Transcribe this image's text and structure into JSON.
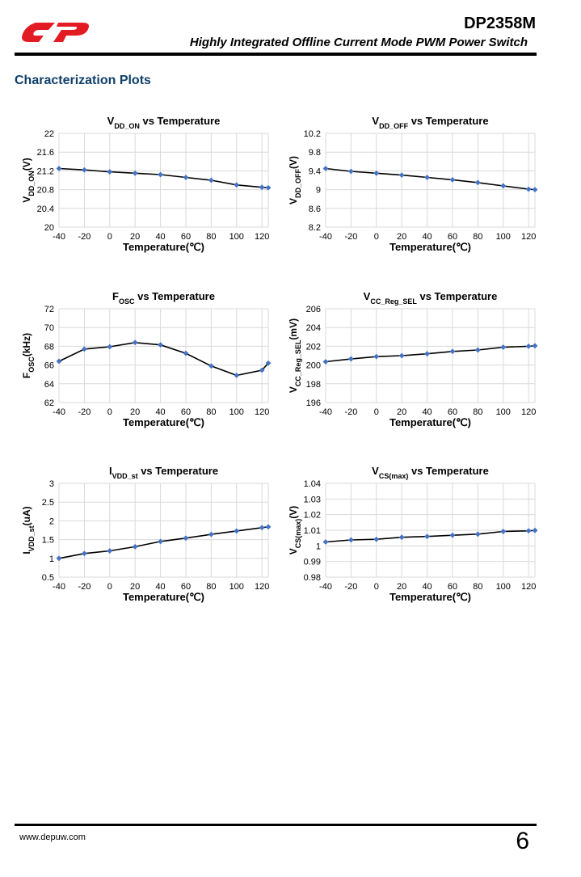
{
  "header": {
    "product": "DP2358M",
    "subtitle": "Highly Integrated Offline Current Mode PWM Power Switch",
    "logo_color": "#e31b23"
  },
  "section": {
    "title": "Characterization Plots"
  },
  "footer": {
    "url": "www.depuw.com",
    "page_number": "6"
  },
  "colors": {
    "line": "#000000",
    "marker": "#4472c4",
    "grid": "#d9d9d9",
    "title_accent": "#0f3f6a"
  },
  "chart_data": [
    {
      "type": "line",
      "title": [
        {
          "t": "V"
        },
        {
          "t": "DD_ON",
          "sub": true
        },
        {
          "t": " vs Temperature"
        }
      ],
      "ylabel": [
        {
          "t": "V"
        },
        {
          "t": "DD_ON",
          "sub": true
        },
        {
          "t": "(V)"
        }
      ],
      "xlabel": "Temperature(℃)",
      "x": [
        -40,
        -20,
        0,
        20,
        40,
        60,
        80,
        100,
        120,
        125
      ],
      "y": [
        21.25,
        21.22,
        21.18,
        21.15,
        21.12,
        21.06,
        21.0,
        20.9,
        20.85,
        20.84
      ],
      "xlim": [
        -40,
        125
      ],
      "xticks": [
        -40,
        -20,
        0,
        20,
        40,
        60,
        80,
        100,
        120
      ],
      "ylim": [
        20,
        22
      ],
      "yticks": [
        "20",
        "20.4",
        "20.8",
        "21.2",
        "21.6",
        "22"
      ]
    },
    {
      "type": "line",
      "title": [
        {
          "t": "V"
        },
        {
          "t": "DD_OFF",
          "sub": true
        },
        {
          "t": " vs Temperature"
        }
      ],
      "ylabel": [
        {
          "t": "V"
        },
        {
          "t": "DD_OFF",
          "sub": true
        },
        {
          "t": "(V)"
        }
      ],
      "xlabel": "Temperature(℃)",
      "x": [
        -40,
        -20,
        0,
        20,
        40,
        60,
        80,
        100,
        120,
        125
      ],
      "y": [
        9.45,
        9.39,
        9.35,
        9.31,
        9.26,
        9.21,
        9.15,
        9.08,
        9.01,
        9.0
      ],
      "xlim": [
        -40,
        125
      ],
      "xticks": [
        -40,
        -20,
        0,
        20,
        40,
        60,
        80,
        100,
        120
      ],
      "ylim": [
        8.2,
        10.2
      ],
      "yticks": [
        "8.2",
        "8.6",
        "9",
        "9.4",
        "9.8",
        "10.2"
      ]
    },
    {
      "type": "line",
      "title": [
        {
          "t": "F"
        },
        {
          "t": "OSC",
          "sub": true
        },
        {
          "t": " vs Temperature"
        }
      ],
      "ylabel": [
        {
          "t": "F"
        },
        {
          "t": "OSC",
          "sub": true
        },
        {
          "t": "(kHz)"
        }
      ],
      "xlabel": "Temperature(℃)",
      "x": [
        -40,
        -20,
        0,
        20,
        40,
        60,
        80,
        100,
        120,
        125
      ],
      "y": [
        66.4,
        67.7,
        67.95,
        68.4,
        68.15,
        67.25,
        65.9,
        64.9,
        65.45,
        66.2
      ],
      "xlim": [
        -40,
        125
      ],
      "xticks": [
        -40,
        -20,
        0,
        20,
        40,
        60,
        80,
        100,
        120
      ],
      "ylim": [
        62,
        72
      ],
      "yticks": [
        "62",
        "64",
        "66",
        "68",
        "70",
        "72"
      ]
    },
    {
      "type": "line",
      "title": [
        {
          "t": "V"
        },
        {
          "t": "CC_Reg_SEL",
          "sub": true
        },
        {
          "t": " vs Temperature"
        }
      ],
      "ylabel": [
        {
          "t": "V"
        },
        {
          "t": "CC_Reg_SEL",
          "sub": true
        },
        {
          "t": "(mV)"
        }
      ],
      "xlabel": "Temperature(℃)",
      "x": [
        -40,
        -20,
        0,
        20,
        40,
        60,
        80,
        100,
        120,
        125
      ],
      "y": [
        200.35,
        200.65,
        200.9,
        201.0,
        201.2,
        201.45,
        201.6,
        201.9,
        202.0,
        202.05
      ],
      "xlim": [
        -40,
        125
      ],
      "xticks": [
        -40,
        -20,
        0,
        20,
        40,
        60,
        80,
        100,
        120
      ],
      "ylim": [
        196,
        206
      ],
      "yticks": [
        "196",
        "198",
        "200",
        "202",
        "204",
        "206"
      ]
    },
    {
      "type": "line",
      "title": [
        {
          "t": "I"
        },
        {
          "t": "VDD_st",
          "sub": true
        },
        {
          "t": " vs Temperature"
        }
      ],
      "ylabel": [
        {
          "t": "I"
        },
        {
          "t": "VDD_st",
          "sub": true
        },
        {
          "t": "(uA)"
        }
      ],
      "xlabel": "Temperature(℃)",
      "x": [
        -40,
        -20,
        0,
        20,
        40,
        60,
        80,
        100,
        120,
        125
      ],
      "y": [
        1.0,
        1.13,
        1.2,
        1.31,
        1.45,
        1.54,
        1.64,
        1.73,
        1.82,
        1.84
      ],
      "xlim": [
        -40,
        125
      ],
      "xticks": [
        -40,
        -20,
        0,
        20,
        40,
        60,
        80,
        100,
        120
      ],
      "ylim": [
        0.5,
        3
      ],
      "yticks": [
        "0.5",
        "1",
        "1.5",
        "2",
        "2.5",
        "3"
      ]
    },
    {
      "type": "line",
      "title": [
        {
          "t": "V"
        },
        {
          "t": "CS(max)",
          "sub": true
        },
        {
          "t": " vs Temperature"
        }
      ],
      "ylabel": [
        {
          "t": "V"
        },
        {
          "t": "CS(max)",
          "sub": true
        },
        {
          "t": "(V)"
        }
      ],
      "xlabel": "Temperature(℃)",
      "x": [
        -40,
        -20,
        0,
        20,
        40,
        60,
        80,
        100,
        120,
        125
      ],
      "y": [
        1.0025,
        1.0038,
        1.0042,
        1.0055,
        1.006,
        1.0068,
        1.0075,
        1.0092,
        1.0096,
        1.0099
      ],
      "xlim": [
        -40,
        125
      ],
      "xticks": [
        -40,
        -20,
        0,
        20,
        40,
        60,
        80,
        100,
        120
      ],
      "ylim": [
        0.98,
        1.04
      ],
      "yticks": [
        "0.98",
        "0.99",
        "1",
        "1.01",
        "1.02",
        "1.03",
        "1.04"
      ]
    }
  ]
}
